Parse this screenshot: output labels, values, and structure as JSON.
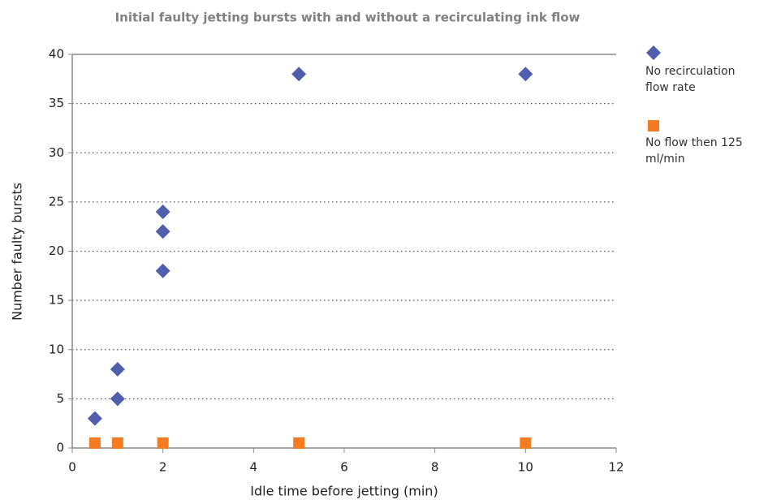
{
  "chart_data": {
    "type": "scatter",
    "title": "Initial faulty jetting bursts with and without a recirculating ink flow",
    "x_label": "Idle time before jetting (min)",
    "y_label": "Number faulty bursts",
    "xlim": [
      0,
      12
    ],
    "xticks": [
      0,
      2,
      4,
      6,
      8,
      10,
      12
    ],
    "ylim": [
      0,
      40
    ],
    "yticks": [
      0,
      5,
      10,
      15,
      20,
      25,
      30,
      35,
      40
    ],
    "grid": true,
    "legend": "right",
    "series": [
      {
        "name": "No recirculation flow rate",
        "color": "#4f5fad",
        "marker": "diamond",
        "x": [
          0.5,
          1,
          1,
          2,
          2,
          2,
          5,
          10
        ],
        "values": [
          3,
          5,
          8,
          18,
          22,
          24,
          38,
          38
        ]
      },
      {
        "name": "No flow then 125 ml/min",
        "color": "#f47b20",
        "marker": "square",
        "x": [
          0.5,
          1,
          2,
          5,
          10
        ],
        "values": [
          0.5,
          0.5,
          0.5,
          0.5,
          0.5
        ]
      }
    ]
  }
}
